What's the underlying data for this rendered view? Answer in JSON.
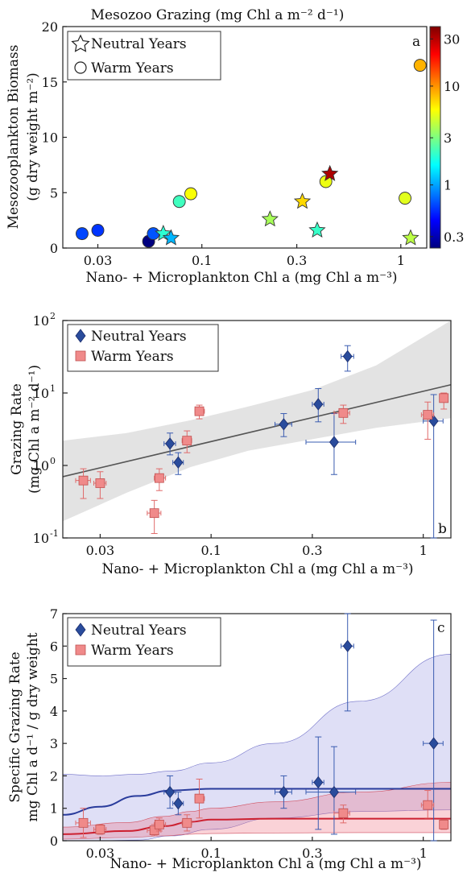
{
  "chart_data": [
    {
      "panel": "a",
      "type": "scatter",
      "title": "Mesozoo Grazing (mg Chl a m⁻² d⁻¹)",
      "xlabel": "Nano- + Microplankton Chl a (mg Chl a m⁻³)",
      "ylabel_line1": "Mesozooplankton Biomass",
      "ylabel_line2": "(g dry weight m⁻²)",
      "x_scale": "log",
      "xlim": [
        0.02,
        1.35
      ],
      "ylim": [
        0,
        20
      ],
      "x_ticks": [
        0.03,
        0.1,
        0.3,
        1
      ],
      "x_tick_labels": [
        "0.03",
        "0.1",
        "0.3",
        "1"
      ],
      "y_ticks": [
        0,
        5,
        10,
        15,
        20
      ],
      "legend": [
        "Neutral Years",
        "Warm Years"
      ],
      "legend_position": "top-left",
      "colorbar": {
        "scale": "log",
        "range": [
          0.23,
          40
        ],
        "ticks": [
          0.3,
          1,
          3,
          10,
          30
        ],
        "tick_labels": [
          "0.3",
          "1",
          "3",
          "10",
          "30"
        ],
        "colormap": "jet"
      },
      "series": [
        {
          "name": "Neutral Years",
          "marker": "star",
          "points": [
            {
              "x": 0.064,
              "y": 1.3,
              "c": 2.0
            },
            {
              "x": 0.07,
              "y": 0.9,
              "c": 1.1
            },
            {
              "x": 0.22,
              "y": 2.6,
              "c": 3.7
            },
            {
              "x": 0.32,
              "y": 4.2,
              "c": 7.0
            },
            {
              "x": 0.38,
              "y": 1.6,
              "c": 2.1
            },
            {
              "x": 0.44,
              "y": 6.7,
              "c": 32
            },
            {
              "x": 1.12,
              "y": 0.9,
              "c": 4.1
            }
          ]
        },
        {
          "name": "Warm Years",
          "marker": "circle",
          "points": [
            {
              "x": 0.025,
              "y": 1.3,
              "c": 0.62
            },
            {
              "x": 0.03,
              "y": 1.6,
              "c": 0.57
            },
            {
              "x": 0.054,
              "y": 0.6,
              "c": 0.22
            },
            {
              "x": 0.057,
              "y": 1.3,
              "c": 0.67
            },
            {
              "x": 0.077,
              "y": 4.2,
              "c": 2.2
            },
            {
              "x": 0.088,
              "y": 4.9,
              "c": 5.6
            },
            {
              "x": 0.42,
              "y": 6.0,
              "c": 5.3
            },
            {
              "x": 1.05,
              "y": 4.5,
              "c": 5.0
            },
            {
              "x": 1.25,
              "y": 16.5,
              "c": 8.5
            }
          ]
        }
      ]
    },
    {
      "panel": "b",
      "type": "scatter",
      "xlabel": "Nano- + Microplankton Chl a  (mg Chl a m⁻³)",
      "ylabel_line1": "Grazing Rate",
      "ylabel_line2": "(mg Chl a m⁻² d⁻¹)",
      "x_scale": "log",
      "y_scale": "log",
      "xlim": [
        0.02,
        1.35
      ],
      "ylim": [
        0.1,
        100
      ],
      "x_ticks": [
        0.03,
        0.1,
        0.3,
        1
      ],
      "x_tick_labels": [
        "0.03",
        "0.1",
        "0.3",
        "1"
      ],
      "y_ticks": [
        0.1,
        1,
        10,
        100
      ],
      "y_tick_base": [
        "10",
        "10",
        "10",
        "10"
      ],
      "y_tick_exp": [
        "-1",
        "0",
        "1",
        "2"
      ],
      "legend": [
        "Neutral Years",
        "Warm Years"
      ],
      "legend_position": "top-left",
      "fit_line": {
        "x": [
          0.02,
          1.35
        ],
        "y": [
          0.7,
          13
        ]
      },
      "confidence_band": {
        "x": [
          0.02,
          0.04,
          0.08,
          0.15,
          0.3,
          0.6,
          1.35
        ],
        "upper": [
          2.2,
          2.8,
          4.2,
          6.5,
          11,
          24,
          100
        ],
        "lower": [
          0.17,
          0.42,
          0.95,
          1.6,
          2.3,
          3.3,
          4.5
        ]
      },
      "series": [
        {
          "name": "Neutral Years",
          "marker": "diamond",
          "color": "#2a4c9c",
          "points": [
            {
              "x": 0.064,
              "y": 2.0,
              "xerr": [
                0.06,
                0.068
              ],
              "yerr": [
                1.4,
                2.8
              ]
            },
            {
              "x": 0.07,
              "y": 1.1,
              "xerr": [
                0.066,
                0.074
              ],
              "yerr": [
                0.75,
                1.5
              ]
            },
            {
              "x": 0.22,
              "y": 3.7,
              "xerr": [
                0.2,
                0.24
              ],
              "yerr": [
                2.5,
                5.2
              ]
            },
            {
              "x": 0.32,
              "y": 7.0,
              "xerr": [
                0.3,
                0.34
              ],
              "yerr": [
                4.0,
                11.5
              ]
            },
            {
              "x": 0.38,
              "y": 2.1,
              "xerr": [
                0.28,
                0.48
              ],
              "yerr": [
                0.75,
                5.2
              ]
            },
            {
              "x": 0.44,
              "y": 32,
              "xerr": [
                0.41,
                0.47
              ],
              "yerr": [
                20,
                45
              ]
            },
            {
              "x": 1.12,
              "y": 4.1,
              "xerr": [
                1.0,
                1.24
              ],
              "yerr": [
                0.1,
                9.5
              ]
            }
          ]
        },
        {
          "name": "Warm Years",
          "marker": "square",
          "color": "#e87a7a",
          "points": [
            {
              "x": 0.025,
              "y": 0.62,
              "xerr": [
                0.023,
                0.027
              ],
              "yerr": [
                0.35,
                0.9
              ]
            },
            {
              "x": 0.03,
              "y": 0.57,
              "xerr": [
                0.028,
                0.032
              ],
              "yerr": [
                0.35,
                0.82
              ]
            },
            {
              "x": 0.054,
              "y": 0.22,
              "xerr": [
                0.05,
                0.058
              ],
              "yerr": [
                0.115,
                0.33
              ]
            },
            {
              "x": 0.057,
              "y": 0.67,
              "xerr": [
                0.054,
                0.061
              ],
              "yerr": [
                0.45,
                0.9
              ]
            },
            {
              "x": 0.077,
              "y": 2.2,
              "xerr": [
                0.073,
                0.081
              ],
              "yerr": [
                1.5,
                3.0
              ]
            },
            {
              "x": 0.088,
              "y": 5.6,
              "xerr": [
                0.084,
                0.093
              ],
              "yerr": [
                4.4,
                6.8
              ]
            },
            {
              "x": 0.42,
              "y": 5.3,
              "xerr": [
                0.38,
                0.45
              ],
              "yerr": [
                3.8,
                6.8
              ]
            },
            {
              "x": 1.05,
              "y": 5.0,
              "xerr": [
                0.98,
                1.12
              ],
              "yerr": [
                2.3,
                7.5
              ]
            },
            {
              "x": 1.25,
              "y": 8.5,
              "xerr": [
                1.2,
                1.3
              ],
              "yerr": [
                6.0,
                10
              ]
            }
          ]
        }
      ]
    },
    {
      "panel": "c",
      "type": "scatter",
      "xlabel": "Nano- + Microplankton Chl a  (mg Chl a m⁻³)",
      "ylabel_line1": "Specific Grazing Rate",
      "ylabel_line2": "mg Chl a d⁻¹ / g dry weight",
      "x_scale": "log",
      "xlim": [
        0.02,
        1.35
      ],
      "ylim": [
        0,
        7
      ],
      "x_ticks": [
        0.03,
        0.1,
        0.3,
        1
      ],
      "x_tick_labels": [
        "0.03",
        "0.1",
        "0.3",
        "1"
      ],
      "y_ticks": [
        0,
        1,
        2,
        3,
        4,
        5,
        6,
        7
      ],
      "legend": [
        "Neutral Years",
        "Warm Years"
      ],
      "legend_position": "top-left",
      "fit_curves": [
        {
          "series": "Neutral Years",
          "color": "#2a3c9c",
          "x": [
            0.02,
            0.03,
            0.045,
            0.065,
            0.1,
            0.2,
            0.5,
            1.35
          ],
          "y": [
            0.8,
            1.05,
            1.38,
            1.55,
            1.6,
            1.6,
            1.6,
            1.6
          ],
          "upper": [
            2.05,
            2.0,
            2.05,
            2.15,
            2.4,
            3.0,
            4.3,
            5.75
          ],
          "lower": [
            0.0,
            0.0,
            0.02,
            0.15,
            0.35,
            0.7,
            0.9,
            0.95
          ]
        },
        {
          "series": "Warm Years",
          "color": "#cc2030",
          "x": [
            0.02,
            0.04,
            0.06,
            0.08,
            0.1,
            0.2,
            0.5,
            1.35
          ],
          "y": [
            0.2,
            0.3,
            0.45,
            0.58,
            0.65,
            0.68,
            0.68,
            0.68
          ],
          "upper": [
            0.42,
            0.56,
            0.75,
            0.9,
            1.0,
            1.2,
            1.5,
            1.8
          ],
          "lower": [
            0.05,
            0.1,
            0.15,
            0.2,
            0.22,
            0.24,
            0.25,
            0.25
          ]
        }
      ],
      "series": [
        {
          "name": "Neutral Years",
          "marker": "diamond",
          "color": "#2a4c9c",
          "points": [
            {
              "x": 0.064,
              "y": 1.5,
              "xerr": [
                0.06,
                0.068
              ],
              "yerr": [
                1.0,
                2.0
              ]
            },
            {
              "x": 0.07,
              "y": 1.15,
              "xerr": [
                0.066,
                0.074
              ],
              "yerr": [
                0.8,
                1.5
              ]
            },
            {
              "x": 0.22,
              "y": 1.5,
              "xerr": [
                0.2,
                0.24
              ],
              "yerr": [
                1.0,
                2.0
              ]
            },
            {
              "x": 0.32,
              "y": 1.8,
              "xerr": [
                0.3,
                0.34
              ],
              "yerr": [
                0.35,
                3.2
              ]
            },
            {
              "x": 0.38,
              "y": 1.5,
              "xerr": [
                0.28,
                0.48
              ],
              "yerr": [
                0.2,
                2.9
              ]
            },
            {
              "x": 0.44,
              "y": 6.0,
              "xerr": [
                0.41,
                0.47
              ],
              "yerr": [
                4.0,
                7.0
              ]
            },
            {
              "x": 1.12,
              "y": 3.0,
              "xerr": [
                1.0,
                1.24
              ],
              "yerr": [
                0.0,
                6.8
              ]
            }
          ]
        },
        {
          "name": "Warm Years",
          "marker": "square",
          "color": "#e87a7a",
          "points": [
            {
              "x": 0.025,
              "y": 0.55,
              "xerr": [
                0.023,
                0.027
              ],
              "yerr": [
                0.1,
                1.0
              ]
            },
            {
              "x": 0.03,
              "y": 0.35,
              "xerr": [
                0.028,
                0.032
              ],
              "yerr": [
                0.2,
                0.5
              ]
            },
            {
              "x": 0.054,
              "y": 0.32,
              "xerr": [
                0.05,
                0.058
              ],
              "yerr": [
                0.15,
                0.5
              ]
            },
            {
              "x": 0.057,
              "y": 0.5,
              "xerr": [
                0.054,
                0.061
              ],
              "yerr": [
                0.3,
                0.7
              ]
            },
            {
              "x": 0.077,
              "y": 0.55,
              "xerr": [
                0.073,
                0.081
              ],
              "yerr": [
                0.3,
                0.8
              ]
            },
            {
              "x": 0.088,
              "y": 1.3,
              "xerr": [
                0.084,
                0.093
              ],
              "yerr": [
                0.7,
                1.9
              ]
            },
            {
              "x": 0.42,
              "y": 0.85,
              "xerr": [
                0.38,
                0.45
              ],
              "yerr": [
                0.55,
                1.1
              ]
            },
            {
              "x": 1.05,
              "y": 1.1,
              "xerr": [
                0.98,
                1.12
              ],
              "yerr": [
                0.7,
                1.55
              ]
            },
            {
              "x": 1.25,
              "y": 0.5,
              "xerr": [
                1.2,
                1.3
              ],
              "yerr": [
                0.35,
                0.65
              ]
            }
          ]
        }
      ]
    }
  ]
}
